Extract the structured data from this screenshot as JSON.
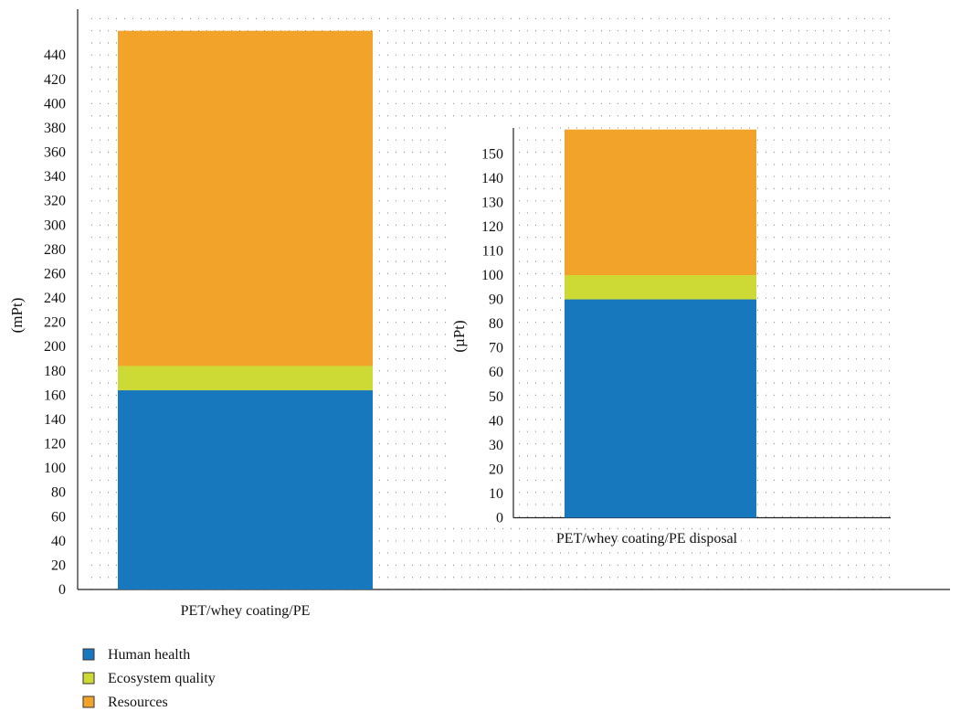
{
  "chart_data": [
    {
      "type": "bar",
      "stacked": true,
      "categories": [
        "PET/whey coating/PE"
      ],
      "ylabel": "(mPt)",
      "ylim": [
        0,
        460
      ],
      "yticks": [
        0,
        20,
        40,
        60,
        80,
        100,
        120,
        140,
        160,
        180,
        200,
        220,
        240,
        260,
        280,
        300,
        320,
        340,
        360,
        380,
        400,
        420,
        440
      ],
      "grid": true,
      "series": [
        {
          "name": "Human health",
          "values": [
            164
          ]
        },
        {
          "name": "Ecosystem quality",
          "values": [
            20
          ]
        },
        {
          "name": "Resources",
          "values": [
            276
          ]
        }
      ]
    },
    {
      "type": "bar",
      "stacked": true,
      "inset": true,
      "categories": [
        "PET/whey coating/PE disposal"
      ],
      "ylabel": "(µPt)",
      "ylim": [
        0,
        160
      ],
      "yticks": [
        0,
        10,
        20,
        30,
        40,
        50,
        60,
        70,
        80,
        90,
        100,
        110,
        120,
        130,
        140,
        150
      ],
      "series": [
        {
          "name": "Human health",
          "values": [
            90
          ]
        },
        {
          "name": "Ecosystem quality",
          "values": [
            10
          ]
        },
        {
          "name": "Resources",
          "values": [
            60
          ]
        }
      ]
    }
  ],
  "legend": {
    "position": "bottom-left",
    "items": [
      {
        "label": "Human health",
        "color": "#1878bd"
      },
      {
        "label": "Ecosystem quality",
        "color": "#cdd935"
      },
      {
        "label": "Resources",
        "color": "#f2a42a"
      }
    ]
  },
  "colors": {
    "Human health": "#1878bd",
    "Ecosystem quality": "#cdd935",
    "Resources": "#f2a42a"
  }
}
